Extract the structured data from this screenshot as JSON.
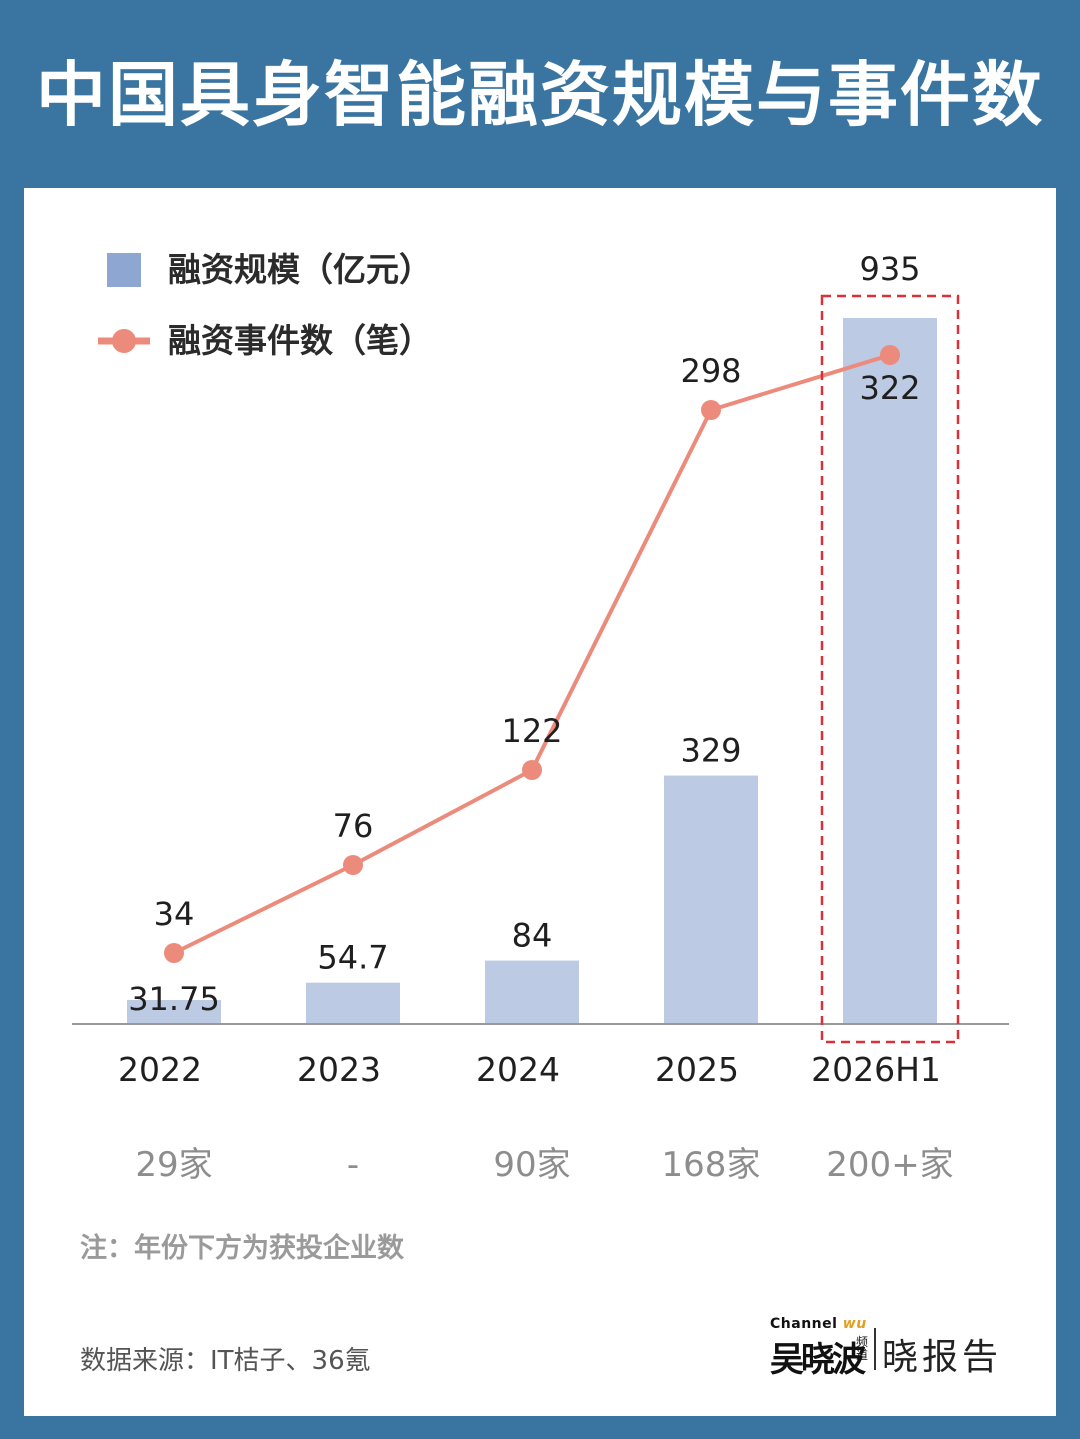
{
  "title": "中国具身智能融资规模与事件数",
  "note": "注：年份下方为获投企业数",
  "source": "数据来源：IT桔子、36氪",
  "logo": {
    "channel": "Channel",
    "channel_suffix": "wu",
    "brand": "吴晓波",
    "brand_sub": "频道",
    "report": "晓报告"
  },
  "colors": {
    "background": "#3a75a1",
    "bar": "#bccae4",
    "legend_bar": "#8ea7d2",
    "line": "#ec8b7b",
    "highlight_box": "#d9303a",
    "axis": "#999999"
  },
  "chart_data": {
    "type": "bar",
    "categories": [
      "2022",
      "2023",
      "2024",
      "2025",
      "2026H1"
    ],
    "series": [
      {
        "name": "融资规模（亿元）",
        "type": "bar",
        "values": [
          31.75,
          54.7,
          84,
          329,
          935
        ],
        "labels": [
          "31.75",
          "54.7",
          "84",
          "329",
          "935"
        ]
      },
      {
        "name": "融资事件数（笔）",
        "type": "line",
        "values": [
          34,
          76,
          122,
          298,
          322
        ],
        "labels": [
          "34",
          "76",
          "122",
          "298",
          "322"
        ]
      }
    ],
    "company_counts": [
      "29家",
      "-",
      "90家",
      "168家",
      "200+家"
    ],
    "highlight_category": "2026H1",
    "legend_position": "top-left",
    "grid": false
  }
}
